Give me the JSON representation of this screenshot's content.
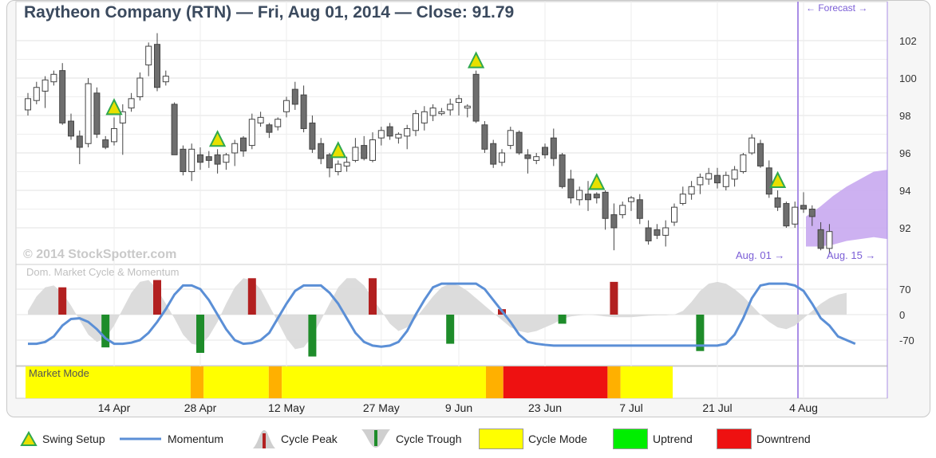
{
  "chart_data": {
    "type": "candlestick",
    "title": "Raytheon Company (RTN) — Fri, Aug 01, 2014 — Close: 91.79",
    "copyright": "© 2014 StockSpotter.com",
    "ylim": [
      90.5,
      103.8
    ],
    "yticks": [
      "102",
      "100",
      "98",
      "96",
      "94",
      "92"
    ],
    "xticks": [
      "14 Apr",
      "28 Apr",
      "12 May",
      "27 May",
      "9 Jun",
      "23 Jun",
      "7 Jul",
      "21 Jul",
      "4 Aug"
    ],
    "forecast_label": "← Forecast →",
    "current_date_label": "Aug. 01 →",
    "forecast_end_label": "Aug. 15 →",
    "candles": [
      {
        "o": 98.3,
        "h": 99.2,
        "l": 98.0,
        "c": 98.9
      },
      {
        "o": 98.8,
        "h": 99.8,
        "l": 98.6,
        "c": 99.5
      },
      {
        "o": 99.3,
        "h": 100.1,
        "l": 98.4,
        "c": 99.9
      },
      {
        "o": 99.8,
        "h": 100.4,
        "l": 99.6,
        "c": 100.2
      },
      {
        "o": 100.4,
        "h": 100.8,
        "l": 97.5,
        "c": 97.6
      },
      {
        "o": 97.7,
        "h": 98.1,
        "l": 96.7,
        "c": 96.9
      },
      {
        "o": 96.9,
        "h": 97.2,
        "l": 95.4,
        "c": 96.3
      },
      {
        "o": 96.5,
        "h": 100.0,
        "l": 96.3,
        "c": 99.7
      },
      {
        "o": 99.2,
        "h": 99.5,
        "l": 96.8,
        "c": 97.0
      },
      {
        "o": 96.7,
        "h": 96.9,
        "l": 96.2,
        "c": 96.3
      },
      {
        "o": 96.6,
        "h": 97.9,
        "l": 96.4,
        "c": 97.3
      },
      {
        "o": 97.6,
        "h": 98.6,
        "l": 95.9,
        "c": 98.2
      },
      {
        "o": 98.4,
        "h": 99.2,
        "l": 98.2,
        "c": 98.9
      },
      {
        "o": 99.0,
        "h": 100.3,
        "l": 98.8,
        "c": 100.0
      },
      {
        "o": 100.7,
        "h": 101.9,
        "l": 100.1,
        "c": 101.7
      },
      {
        "o": 101.8,
        "h": 102.4,
        "l": 99.3,
        "c": 99.5
      },
      {
        "o": 99.8,
        "h": 100.4,
        "l": 99.6,
        "c": 100.1
      },
      {
        "o": 98.6,
        "h": 98.7,
        "l": 95.9,
        "c": 95.9
      },
      {
        "o": 96.2,
        "h": 96.4,
        "l": 94.8,
        "c": 95.0
      },
      {
        "o": 95.0,
        "h": 96.5,
        "l": 94.5,
        "c": 96.2
      },
      {
        "o": 95.9,
        "h": 96.3,
        "l": 95.1,
        "c": 95.5
      },
      {
        "o": 95.8,
        "h": 96.1,
        "l": 95.2,
        "c": 95.6
      },
      {
        "o": 95.9,
        "h": 96.2,
        "l": 94.9,
        "c": 95.4
      },
      {
        "o": 95.5,
        "h": 96.0,
        "l": 95.1,
        "c": 95.9
      },
      {
        "o": 96.0,
        "h": 96.7,
        "l": 95.3,
        "c": 96.5
      },
      {
        "o": 96.8,
        "h": 96.9,
        "l": 95.8,
        "c": 96.1
      },
      {
        "o": 96.4,
        "h": 98.1,
        "l": 96.2,
        "c": 97.8
      },
      {
        "o": 97.6,
        "h": 98.2,
        "l": 97.4,
        "c": 97.9
      },
      {
        "o": 97.5,
        "h": 97.6,
        "l": 96.8,
        "c": 97.1
      },
      {
        "o": 97.4,
        "h": 97.9,
        "l": 97.2,
        "c": 97.8
      },
      {
        "o": 98.2,
        "h": 99.0,
        "l": 97.9,
        "c": 98.8
      },
      {
        "o": 99.4,
        "h": 99.8,
        "l": 98.3,
        "c": 98.6
      },
      {
        "o": 99.1,
        "h": 99.6,
        "l": 97.1,
        "c": 97.3
      },
      {
        "o": 97.6,
        "h": 98.0,
        "l": 96.0,
        "c": 96.2
      },
      {
        "o": 96.5,
        "h": 96.8,
        "l": 95.4,
        "c": 95.7
      },
      {
        "o": 95.9,
        "h": 96.0,
        "l": 94.7,
        "c": 95.2
      },
      {
        "o": 95.0,
        "h": 95.6,
        "l": 94.8,
        "c": 95.4
      },
      {
        "o": 95.3,
        "h": 95.8,
        "l": 95.0,
        "c": 95.5
      },
      {
        "o": 95.6,
        "h": 96.8,
        "l": 95.5,
        "c": 96.3
      },
      {
        "o": 96.4,
        "h": 96.9,
        "l": 95.6,
        "c": 95.7
      },
      {
        "o": 95.6,
        "h": 97.1,
        "l": 95.5,
        "c": 96.7
      },
      {
        "o": 96.8,
        "h": 97.4,
        "l": 96.4,
        "c": 97.2
      },
      {
        "o": 97.4,
        "h": 97.6,
        "l": 96.7,
        "c": 96.9
      },
      {
        "o": 96.8,
        "h": 97.1,
        "l": 96.5,
        "c": 97.0
      },
      {
        "o": 96.9,
        "h": 97.5,
        "l": 96.2,
        "c": 97.3
      },
      {
        "o": 97.2,
        "h": 98.3,
        "l": 96.9,
        "c": 98.1
      },
      {
        "o": 97.6,
        "h": 98.5,
        "l": 97.2,
        "c": 98.2
      },
      {
        "o": 98.0,
        "h": 98.6,
        "l": 97.7,
        "c": 98.4
      },
      {
        "o": 98.1,
        "h": 98.4,
        "l": 98.0,
        "c": 98.2
      },
      {
        "o": 98.3,
        "h": 98.9,
        "l": 98.0,
        "c": 98.6
      },
      {
        "o": 98.7,
        "h": 99.1,
        "l": 98.0,
        "c": 98.9
      },
      {
        "o": 98.4,
        "h": 98.6,
        "l": 97.9,
        "c": 98.5
      },
      {
        "o": 100.2,
        "h": 100.4,
        "l": 97.6,
        "c": 97.7
      },
      {
        "o": 97.5,
        "h": 97.7,
        "l": 96.0,
        "c": 96.2
      },
      {
        "o": 96.5,
        "h": 96.7,
        "l": 95.2,
        "c": 95.4
      },
      {
        "o": 95.5,
        "h": 96.2,
        "l": 95.3,
        "c": 96.0
      },
      {
        "o": 96.4,
        "h": 97.4,
        "l": 96.2,
        "c": 97.2
      },
      {
        "o": 97.1,
        "h": 97.2,
        "l": 95.9,
        "c": 96.0
      },
      {
        "o": 95.9,
        "h": 96.2,
        "l": 94.9,
        "c": 95.7
      },
      {
        "o": 95.6,
        "h": 96.0,
        "l": 95.4,
        "c": 95.8
      },
      {
        "o": 96.3,
        "h": 96.5,
        "l": 95.7,
        "c": 95.9
      },
      {
        "o": 96.8,
        "h": 97.3,
        "l": 95.3,
        "c": 95.7
      },
      {
        "o": 95.9,
        "h": 96.0,
        "l": 94.1,
        "c": 94.2
      },
      {
        "o": 94.6,
        "h": 95.1,
        "l": 93.3,
        "c": 93.6
      },
      {
        "o": 93.5,
        "h": 94.2,
        "l": 93.2,
        "c": 94.0
      },
      {
        "o": 93.8,
        "h": 94.5,
        "l": 92.9,
        "c": 93.5
      },
      {
        "o": 93.8,
        "h": 93.9,
        "l": 93.3,
        "c": 93.6
      },
      {
        "o": 93.9,
        "h": 94.0,
        "l": 91.9,
        "c": 92.5
      },
      {
        "o": 92.7,
        "h": 93.3,
        "l": 90.8,
        "c": 92.0
      },
      {
        "o": 92.7,
        "h": 93.4,
        "l": 92.5,
        "c": 93.2
      },
      {
        "o": 93.4,
        "h": 93.7,
        "l": 92.9,
        "c": 93.6
      },
      {
        "o": 93.5,
        "h": 93.8,
        "l": 92.2,
        "c": 92.5
      },
      {
        "o": 92.0,
        "h": 92.4,
        "l": 91.1,
        "c": 91.3
      },
      {
        "o": 91.9,
        "h": 92.2,
        "l": 91.4,
        "c": 91.6
      },
      {
        "o": 91.6,
        "h": 92.4,
        "l": 91.0,
        "c": 92.0
      },
      {
        "o": 92.3,
        "h": 93.3,
        "l": 92.1,
        "c": 93.1
      },
      {
        "o": 93.3,
        "h": 94.2,
        "l": 93.2,
        "c": 93.8
      },
      {
        "o": 93.8,
        "h": 94.5,
        "l": 93.5,
        "c": 94.2
      },
      {
        "o": 94.3,
        "h": 94.9,
        "l": 93.8,
        "c": 94.7
      },
      {
        "o": 94.6,
        "h": 95.2,
        "l": 94.3,
        "c": 94.9
      },
      {
        "o": 94.8,
        "h": 95.2,
        "l": 94.1,
        "c": 94.4
      },
      {
        "o": 94.2,
        "h": 95.0,
        "l": 94.0,
        "c": 94.8
      },
      {
        "o": 94.6,
        "h": 95.3,
        "l": 94.2,
        "c": 95.1
      },
      {
        "o": 95.0,
        "h": 96.0,
        "l": 94.9,
        "c": 95.9
      },
      {
        "o": 96.0,
        "h": 97.0,
        "l": 95.9,
        "c": 96.8
      },
      {
        "o": 96.5,
        "h": 96.7,
        "l": 95.2,
        "c": 95.3
      },
      {
        "o": 95.2,
        "h": 95.6,
        "l": 93.6,
        "c": 93.8
      },
      {
        "o": 93.6,
        "h": 94.0,
        "l": 92.9,
        "c": 93.1
      },
      {
        "o": 93.3,
        "h": 93.4,
        "l": 92.0,
        "c": 92.1
      },
      {
        "o": 92.2,
        "h": 93.4,
        "l": 92.0,
        "c": 93.1
      },
      {
        "o": 93.2,
        "h": 93.9,
        "l": 92.8,
        "c": 93.0
      },
      {
        "o": 93.0,
        "h": 93.2,
        "l": 92.1,
        "c": 92.6
      },
      {
        "o": 91.9,
        "h": 92.3,
        "l": 90.8,
        "c": 90.9
      },
      {
        "o": 90.9,
        "h": 92.2,
        "l": 90.6,
        "c": 91.8
      }
    ],
    "swing_setups": [
      10,
      22,
      36,
      52,
      66,
      87
    ],
    "forecast": {
      "upper": [
        92.6,
        93.1,
        93.7,
        94.2,
        94.6,
        95.0,
        95.1
      ],
      "lower": [
        91.0,
        91.0,
        91.1,
        91.3,
        91.4,
        91.5,
        91.4
      ]
    },
    "momentum_panel": {
      "label": "Dom. Market Cycle & Momentum",
      "ylim": [
        -115,
        105
      ],
      "yticks": [
        "70",
        "0",
        "-70"
      ],
      "momentum": [
        -80,
        -80,
        -75,
        -60,
        -30,
        -12,
        -10,
        -20,
        -40,
        -65,
        -80,
        -80,
        -77,
        -70,
        -50,
        -20,
        15,
        55,
        80,
        80,
        70,
        40,
        0,
        -40,
        -70,
        -80,
        -78,
        -70,
        -50,
        -10,
        30,
        65,
        80,
        80,
        80,
        60,
        30,
        -10,
        -50,
        -75,
        -85,
        -88,
        -85,
        -75,
        -45,
        0,
        40,
        75,
        85,
        85,
        85,
        85,
        85,
        70,
        40,
        10,
        -20,
        -55,
        -75,
        -80,
        -83,
        -85,
        -85,
        -85,
        -85,
        -85,
        -85,
        -85,
        -85,
        -85,
        -85,
        -85,
        -85,
        -85,
        -85,
        -85,
        -85,
        -85,
        -85,
        -85,
        -85,
        -80,
        -55,
        -10,
        45,
        80,
        85,
        85,
        85,
        80,
        65,
        30,
        -10,
        -30,
        -60,
        -70,
        -80
      ],
      "cycle": [
        10,
        50,
        75,
        80,
        60,
        25,
        -15,
        -55,
        -75,
        -65,
        -30,
        15,
        60,
        90,
        95,
        70,
        30,
        -10,
        -55,
        -80,
        -85,
        -60,
        -20,
        30,
        75,
        100,
        95,
        70,
        25,
        -20,
        -65,
        -95,
        -90,
        -60,
        -15,
        30,
        75,
        100,
        100,
        80,
        45,
        10,
        -25,
        -45,
        -35,
        -10,
        20,
        50,
        75,
        85,
        80,
        65,
        45,
        25,
        5,
        -15,
        -35,
        -45,
        -50,
        -45,
        -35,
        -25,
        -12,
        -5,
        -2,
        0,
        -2,
        -5,
        -7,
        -7,
        -7,
        -5,
        -3,
        -2,
        -2,
        0,
        10,
        35,
        65,
        85,
        90,
        85,
        70,
        50,
        25,
        0,
        -20,
        -35,
        -40,
        -30,
        -10,
        10,
        30,
        45,
        55,
        60
      ]
    },
    "cycle_marks": [
      {
        "i": 4,
        "type": "peak",
        "v": 75
      },
      {
        "i": 9,
        "type": "trough",
        "v": -90
      },
      {
        "i": 15,
        "type": "peak",
        "v": 95
      },
      {
        "i": 20,
        "type": "trough",
        "v": -105
      },
      {
        "i": 26,
        "type": "peak",
        "v": 100
      },
      {
        "i": 33,
        "type": "trough",
        "v": -115
      },
      {
        "i": 40,
        "type": "peak",
        "v": 100
      },
      {
        "i": 49,
        "type": "trough",
        "v": -80
      },
      {
        "i": 55,
        "type": "peak",
        "v": 15
      },
      {
        "i": 62,
        "type": "trough",
        "v": -25
      },
      {
        "i": 68,
        "type": "peak",
        "v": 90
      },
      {
        "i": 78,
        "type": "trough",
        "v": -100
      }
    ],
    "market_mode": {
      "label": "Market Mode",
      "segments": [
        {
          "start": 0,
          "end": 19,
          "mode": "cycle"
        },
        {
          "start": 19,
          "end": 20.5,
          "mode": "transition"
        },
        {
          "start": 20.5,
          "end": 28,
          "mode": "cycle"
        },
        {
          "start": 28,
          "end": 29.5,
          "mode": "transition"
        },
        {
          "start": 29.5,
          "end": 53,
          "mode": "cycle"
        },
        {
          "start": 53,
          "end": 55,
          "mode": "transition"
        },
        {
          "start": 55,
          "end": 67,
          "mode": "downtrend"
        },
        {
          "start": 67,
          "end": 68.5,
          "mode": "transition"
        },
        {
          "start": 68.5,
          "end": 74.5,
          "mode": "cycle"
        }
      ]
    }
  },
  "colors": {
    "up_candle": "#ffffff",
    "down_candle": "#6e6e6e",
    "swing_setup": "#e8e000",
    "swing_setup_border": "#2fa84f",
    "momentum": "#5b8fd6",
    "cycle_fill": "#d8d8d8",
    "cycle_peak": "#b22020",
    "cycle_trough": "#1e8c2a",
    "cycle_mode": "#ffff00",
    "transition_mode": "#ffb000",
    "uptrend": "#00ee00",
    "downtrend": "#ee1111",
    "forecast": "#c8a8f0",
    "marker_line": "#a98de6"
  },
  "legend": [
    {
      "key": "swing",
      "label": "Swing Setup"
    },
    {
      "key": "momentum",
      "label": "Momentum"
    },
    {
      "key": "peak",
      "label": "Cycle Peak"
    },
    {
      "key": "trough",
      "label": "Cycle Trough"
    },
    {
      "key": "cyclemode",
      "label": "Cycle Mode"
    },
    {
      "key": "uptrend",
      "label": "Uptrend"
    },
    {
      "key": "downtrend",
      "label": "Downtrend"
    }
  ]
}
